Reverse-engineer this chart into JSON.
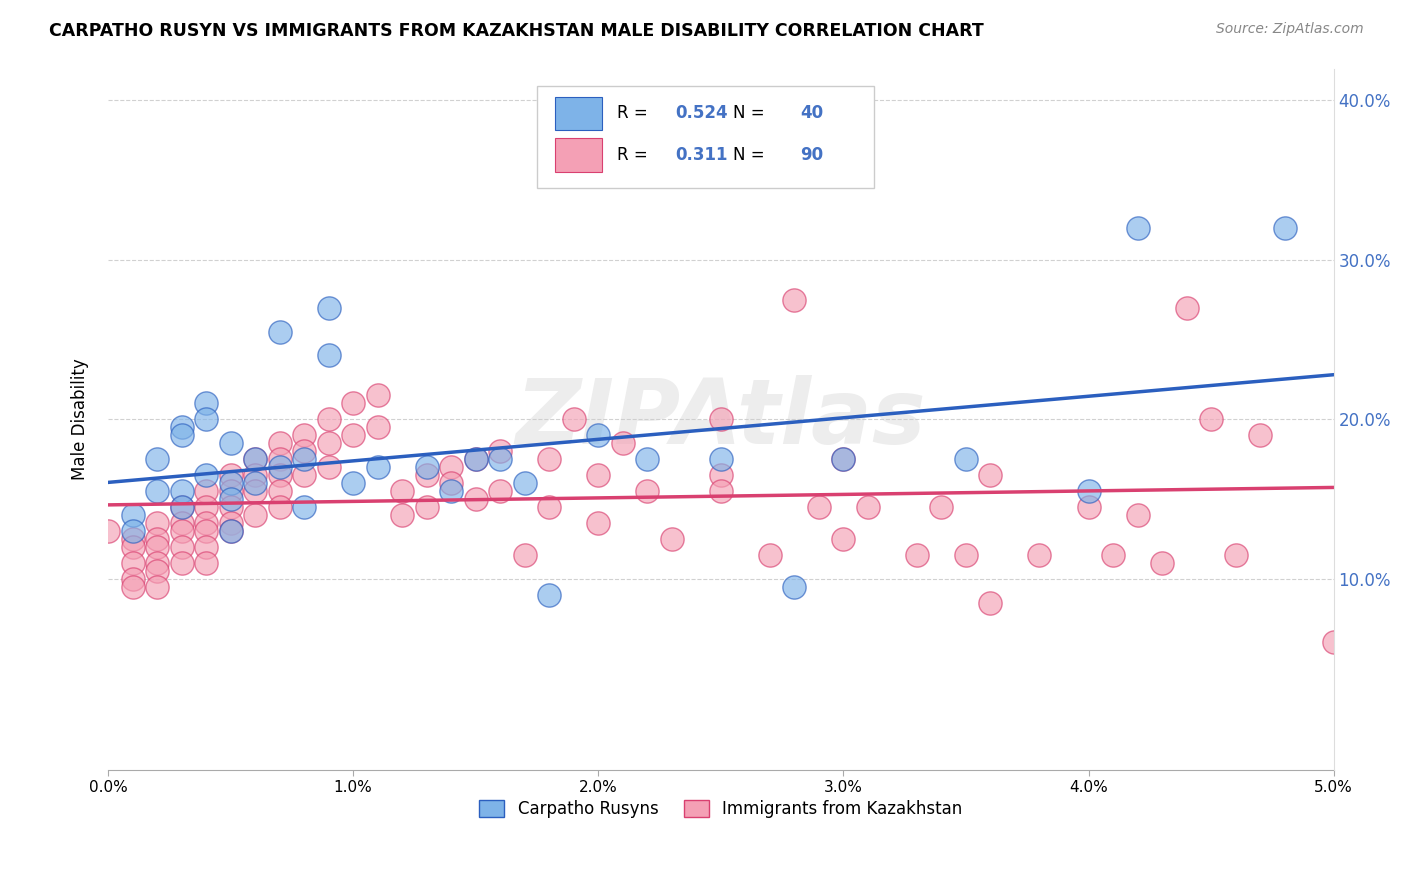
{
  "title": "CARPATHO RUSYN VS IMMIGRANTS FROM KAZAKHSTAN MALE DISABILITY CORRELATION CHART",
  "source": "Source: ZipAtlas.com",
  "ylabel": "Male Disability",
  "xlim": [
    0.0,
    0.05
  ],
  "ylim": [
    -0.02,
    0.42
  ],
  "blue_R": 0.524,
  "blue_N": 40,
  "pink_R": 0.311,
  "pink_N": 90,
  "blue_color": "#7EB3E8",
  "pink_color": "#F4A0B5",
  "blue_line_color": "#2B5FBF",
  "pink_line_color": "#D94070",
  "background_color": "#FFFFFF",
  "watermark_text": "ZIPAtlas",
  "legend_label_blue": "Carpatho Rusyns",
  "legend_label_pink": "Immigrants from Kazakhstan",
  "x_ticks": [
    0.0,
    0.01,
    0.02,
    0.03,
    0.04,
    0.05
  ],
  "x_tick_labels": [
    "0.0%",
    "1.0%",
    "2.0%",
    "3.0%",
    "4.0%",
    "5.0%"
  ],
  "y_ticks": [
    0.1,
    0.2,
    0.3,
    0.4
  ],
  "y_tick_labels": [
    "10.0%",
    "20.0%",
    "30.0%",
    "40.0%"
  ],
  "blue_scatter_x": [
    0.001,
    0.001,
    0.002,
    0.002,
    0.003,
    0.003,
    0.003,
    0.003,
    0.004,
    0.004,
    0.004,
    0.005,
    0.005,
    0.005,
    0.005,
    0.006,
    0.006,
    0.007,
    0.007,
    0.008,
    0.008,
    0.009,
    0.009,
    0.01,
    0.011,
    0.013,
    0.014,
    0.015,
    0.016,
    0.017,
    0.018,
    0.02,
    0.022,
    0.025,
    0.028,
    0.03,
    0.035,
    0.04,
    0.042,
    0.048
  ],
  "blue_scatter_y": [
    0.14,
    0.13,
    0.175,
    0.155,
    0.195,
    0.19,
    0.155,
    0.145,
    0.21,
    0.2,
    0.165,
    0.185,
    0.16,
    0.15,
    0.13,
    0.175,
    0.16,
    0.17,
    0.255,
    0.145,
    0.175,
    0.27,
    0.24,
    0.16,
    0.17,
    0.17,
    0.155,
    0.175,
    0.175,
    0.16,
    0.09,
    0.19,
    0.175,
    0.175,
    0.095,
    0.175,
    0.175,
    0.155,
    0.32,
    0.32
  ],
  "pink_scatter_x": [
    0.0,
    0.001,
    0.001,
    0.001,
    0.001,
    0.001,
    0.002,
    0.002,
    0.002,
    0.002,
    0.002,
    0.002,
    0.003,
    0.003,
    0.003,
    0.003,
    0.003,
    0.004,
    0.004,
    0.004,
    0.004,
    0.004,
    0.004,
    0.005,
    0.005,
    0.005,
    0.005,
    0.005,
    0.006,
    0.006,
    0.006,
    0.006,
    0.007,
    0.007,
    0.007,
    0.007,
    0.007,
    0.008,
    0.008,
    0.008,
    0.009,
    0.009,
    0.009,
    0.01,
    0.01,
    0.011,
    0.011,
    0.012,
    0.012,
    0.013,
    0.013,
    0.014,
    0.014,
    0.015,
    0.015,
    0.016,
    0.016,
    0.017,
    0.018,
    0.018,
    0.019,
    0.02,
    0.02,
    0.021,
    0.022,
    0.023,
    0.025,
    0.025,
    0.027,
    0.028,
    0.029,
    0.03,
    0.031,
    0.033,
    0.034,
    0.035,
    0.036,
    0.038,
    0.04,
    0.041,
    0.042,
    0.043,
    0.044,
    0.045,
    0.046,
    0.047,
    0.036,
    0.025,
    0.03,
    0.05
  ],
  "pink_scatter_y": [
    0.13,
    0.125,
    0.12,
    0.11,
    0.1,
    0.095,
    0.135,
    0.125,
    0.12,
    0.11,
    0.105,
    0.095,
    0.145,
    0.135,
    0.13,
    0.12,
    0.11,
    0.155,
    0.145,
    0.135,
    0.13,
    0.12,
    0.11,
    0.165,
    0.155,
    0.145,
    0.135,
    0.13,
    0.175,
    0.165,
    0.155,
    0.14,
    0.185,
    0.175,
    0.165,
    0.155,
    0.145,
    0.19,
    0.18,
    0.165,
    0.2,
    0.185,
    0.17,
    0.21,
    0.19,
    0.215,
    0.195,
    0.155,
    0.14,
    0.165,
    0.145,
    0.17,
    0.16,
    0.175,
    0.15,
    0.18,
    0.155,
    0.115,
    0.175,
    0.145,
    0.2,
    0.165,
    0.135,
    0.185,
    0.155,
    0.125,
    0.2,
    0.165,
    0.115,
    0.275,
    0.145,
    0.175,
    0.145,
    0.115,
    0.145,
    0.115,
    0.085,
    0.115,
    0.145,
    0.115,
    0.14,
    0.11,
    0.27,
    0.2,
    0.115,
    0.19,
    0.165,
    0.155,
    0.125,
    0.06
  ]
}
